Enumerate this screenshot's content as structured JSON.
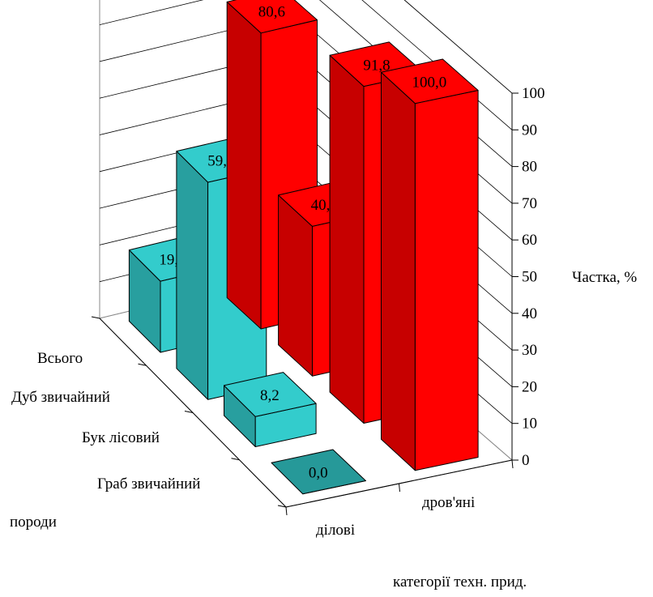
{
  "chart_data": {
    "type": "bar",
    "subtype": "3d-clustered",
    "categories": [
      "Всього",
      "Дуб звичайний",
      "Бук лісовий",
      "Граб звичайний"
    ],
    "series": [
      {
        "name": "ділові",
        "values": [
          19.4,
          59.2,
          8.2,
          0.0
        ],
        "color": "#33CCCC"
      },
      {
        "name": "дров'яні",
        "values": [
          80.6,
          40.8,
          91.8,
          100.0
        ],
        "color": "#FF0000"
      }
    ],
    "value_labels": {
      "ділові": [
        "19,4",
        "59,2",
        "8,2",
        "0,0"
      ],
      "дров'яні": [
        "80,6",
        "40,8",
        "91,8",
        "100,0"
      ]
    },
    "z_ticks": [
      "0",
      "10",
      "20",
      "30",
      "40",
      "50",
      "60",
      "70",
      "80",
      "90",
      "100"
    ],
    "zlim": [
      0,
      100
    ],
    "zlabel": "Частка, %",
    "depth_axis_label": "породи",
    "series_axis_label": "категорії техн. прид.",
    "series_axis_ticks": [
      "ділові",
      "дров'яні"
    ],
    "gridlines": true,
    "legend": "none"
  }
}
